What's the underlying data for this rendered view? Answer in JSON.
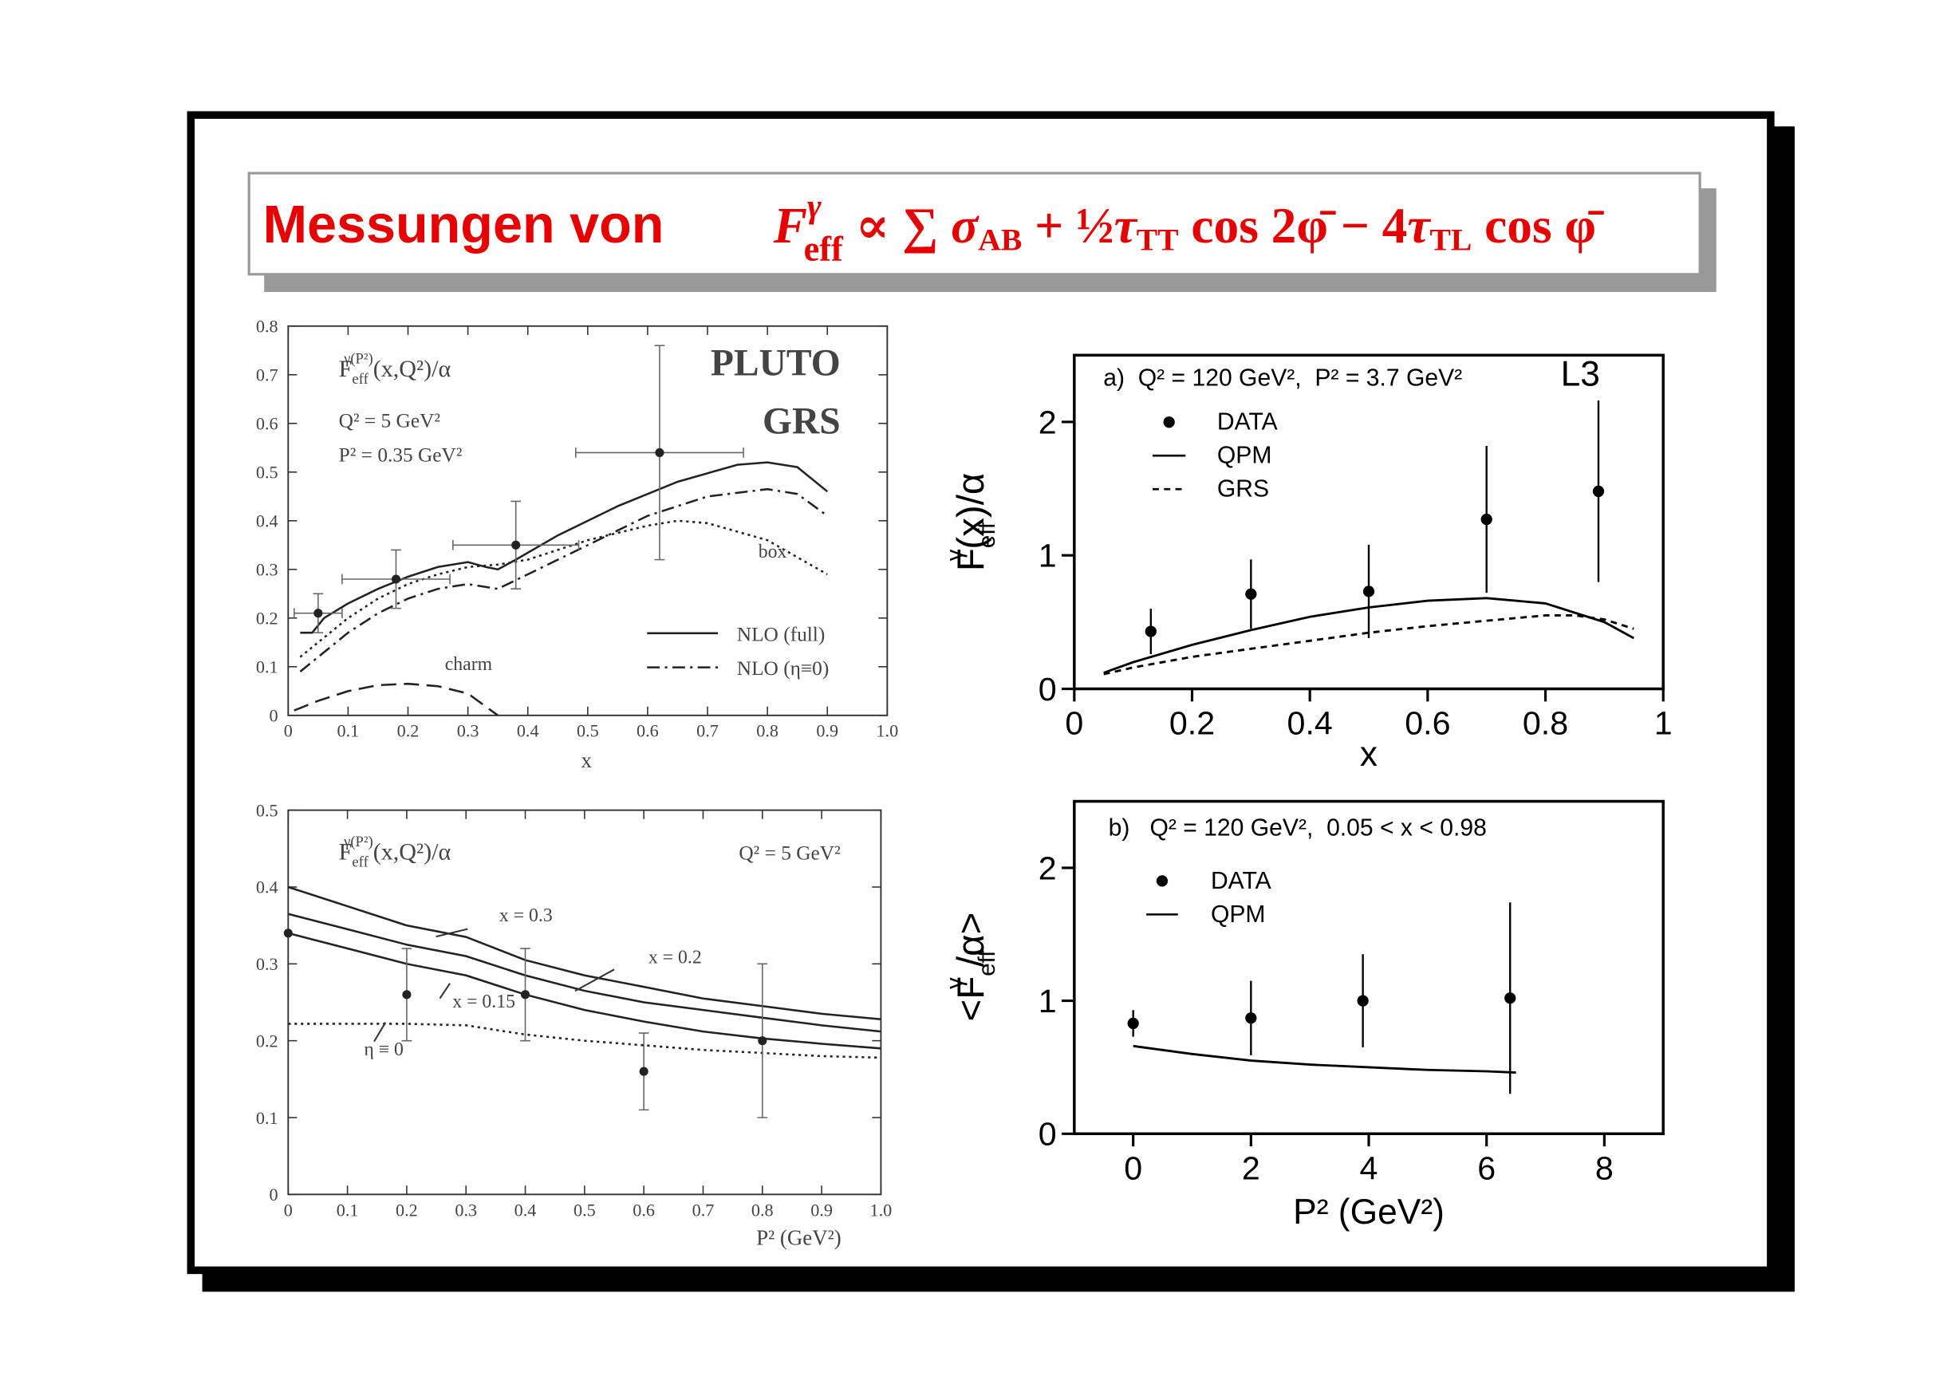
{
  "title": {
    "text": "Messungen von",
    "formula": [
      "F",
      "γ",
      "eff",
      " ∝ ∑ ",
      "σ",
      "AB",
      " + ½",
      "τ",
      "TT",
      " cos 2φ̄ − 4",
      "τ",
      "TL",
      " cos φ̄"
    ]
  },
  "chart_data": [
    {
      "type": "line",
      "annotations": [
        [
          "F",
          "eff",
          "γ(P²)",
          "(x,Q²)/α"
        ],
        "Q² = 5 GeV²",
        "P² = 0.35 GeV²",
        "PLUTO",
        "GRS"
      ],
      "xlabel": "x",
      "xlim": [
        0,
        1
      ],
      "ylim": [
        0,
        0.8
      ],
      "xticks": [
        0,
        0.1,
        0.2,
        0.3,
        0.4,
        0.5,
        0.6,
        0.7,
        0.8,
        0.9,
        {
          "value": 1,
          "label": "1.0"
        }
      ],
      "yticks": [
        0,
        0.1,
        0.2,
        0.3,
        0.4,
        0.5,
        0.6,
        0.7,
        0.8
      ],
      "legend": "lower right",
      "series": [
        {
          "type": "line",
          "name": "NLO (full)",
          "color": "#222222",
          "style": "solid",
          "legend": true,
          "x": [
            0.02,
            0.04,
            0.06,
            0.1,
            0.15,
            0.2,
            0.25,
            0.3,
            0.33,
            0.35,
            0.38,
            0.45,
            0.55,
            0.65,
            0.75,
            0.8,
            0.85,
            0.9
          ],
          "values": [
            0.17,
            0.17,
            0.2,
            0.23,
            0.26,
            0.285,
            0.305,
            0.315,
            0.305,
            0.3,
            0.32,
            0.37,
            0.43,
            0.48,
            0.515,
            0.52,
            0.51,
            0.46
          ]
        },
        {
          "type": "line",
          "name": "NLO (η≡0)",
          "color": "#222222",
          "style": "dashdot",
          "legend": true,
          "x": [
            0.02,
            0.06,
            0.1,
            0.15,
            0.2,
            0.25,
            0.3,
            0.35,
            0.4,
            0.5,
            0.6,
            0.7,
            0.8,
            0.85,
            0.9
          ],
          "values": [
            0.09,
            0.13,
            0.17,
            0.21,
            0.24,
            0.26,
            0.27,
            0.26,
            0.29,
            0.35,
            0.41,
            0.45,
            0.465,
            0.455,
            0.41
          ]
        },
        {
          "type": "line",
          "name": "box",
          "color": "#222222",
          "style": "dotted",
          "legend": false,
          "x": [
            0.02,
            0.06,
            0.1,
            0.15,
            0.2,
            0.25,
            0.3,
            0.35,
            0.4,
            0.5,
            0.6,
            0.65,
            0.7,
            0.8,
            0.9
          ],
          "values": [
            0.12,
            0.16,
            0.2,
            0.24,
            0.27,
            0.29,
            0.305,
            0.31,
            0.32,
            0.36,
            0.39,
            0.4,
            0.395,
            0.36,
            0.29
          ]
        },
        {
          "type": "line",
          "name": "charm",
          "color": "#222222",
          "style": "dashed",
          "legend": false,
          "x": [
            0.01,
            0.05,
            0.1,
            0.15,
            0.2,
            0.25,
            0.3,
            0.35
          ],
          "values": [
            0.01,
            0.03,
            0.05,
            0.062,
            0.065,
            0.06,
            0.045,
            0
          ]
        },
        {
          "type": "errorbar",
          "color": "#222222",
          "legend": false,
          "x": [
            0.05,
            0.18,
            0.38,
            0.62
          ],
          "xerrors": [
            0.04,
            0.09,
            0.105,
            0.14
          ],
          "values": [
            0.21,
            0.28,
            0.35,
            0.54
          ],
          "errors": [
            0.04,
            0.06,
            0.09,
            0.22
          ]
        }
      ]
    },
    {
      "type": "line",
      "annotations": [
        [
          "F",
          "eff",
          "γ(P²)",
          "(x,Q²)/α"
        ],
        "Q² = 5 GeV²"
      ],
      "xlabel": "P² (GeV²)",
      "xlim": [
        0,
        1
      ],
      "ylim": [
        0,
        0.5
      ],
      "xticks": [
        0,
        0.1,
        0.2,
        0.3,
        0.4,
        0.5,
        0.6,
        0.7,
        0.8,
        0.9,
        {
          "value": 1,
          "label": "1.0"
        }
      ],
      "yticks": [
        0,
        0.1,
        0.2,
        0.3,
        0.4,
        0.5
      ],
      "series": [
        {
          "type": "line",
          "name": "x = 0.3",
          "color": "#222222",
          "style": "solid",
          "legend": false,
          "x": [
            0,
            0.1,
            0.2,
            0.3,
            0.4,
            0.5,
            0.6,
            0.7,
            0.8,
            0.9,
            1
          ],
          "values": [
            0.4,
            0.375,
            0.35,
            0.335,
            0.305,
            0.285,
            0.27,
            0.255,
            0.245,
            0.235,
            0.228
          ]
        },
        {
          "type": "line",
          "name": "x = 0.2",
          "color": "#222222",
          "style": "solid",
          "legend": false,
          "x": [
            0,
            0.1,
            0.2,
            0.3,
            0.4,
            0.5,
            0.6,
            0.7,
            0.8,
            0.9,
            1
          ],
          "values": [
            0.365,
            0.345,
            0.325,
            0.31,
            0.285,
            0.265,
            0.25,
            0.24,
            0.23,
            0.22,
            0.212
          ]
        },
        {
          "type": "line",
          "name": "x = 0.15",
          "color": "#222222",
          "style": "solid",
          "legend": false,
          "x": [
            0,
            0.1,
            0.2,
            0.3,
            0.4,
            0.5,
            0.6,
            0.7,
            0.8,
            0.9,
            1
          ],
          "values": [
            0.34,
            0.32,
            0.3,
            0.285,
            0.26,
            0.24,
            0.225,
            0.212,
            0.203,
            0.196,
            0.19
          ]
        },
        {
          "type": "line",
          "name": "η ≡ 0",
          "color": "#222222",
          "style": "dotted",
          "legend": false,
          "x": [
            0,
            0.1,
            0.2,
            0.3,
            0.4,
            0.5,
            0.6,
            0.7,
            0.8,
            0.9,
            1
          ],
          "values": [
            0.222,
            0.222,
            0.222,
            0.22,
            0.208,
            0.2,
            0.194,
            0.188,
            0.184,
            0.18,
            0.178
          ]
        },
        {
          "type": "errorbar",
          "color": "#222222",
          "legend": false,
          "x": [
            0,
            0.2,
            0.4,
            0.6,
            0.8
          ],
          "values": [
            0.34,
            0.26,
            0.26,
            0.16,
            0.2
          ],
          "errors": [
            0,
            0.06,
            0.06,
            0.05,
            0.1
          ]
        }
      ]
    },
    {
      "type": "line",
      "annotations": [
        "a)  Q² = 120 GeV²,  P² = 3.7 GeV²",
        "L3"
      ],
      "xlabel": "x",
      "ylabel": [
        "F",
        "eff",
        "γ",
        "(x)/α"
      ],
      "xlim": [
        0,
        1
      ],
      "ylim": [
        0,
        2.5
      ],
      "xticks": [
        0,
        0.2,
        0.4,
        0.6,
        0.8,
        1
      ],
      "yticks": [
        0,
        1,
        2
      ],
      "legend": "upper left",
      "series": [
        {
          "type": "errorbar",
          "name": "DATA",
          "color": "#000000",
          "legend": true,
          "x": [
            0.13,
            0.3,
            0.5,
            0.7,
            0.89
          ],
          "values": [
            0.43,
            0.71,
            0.73,
            1.27,
            1.48
          ],
          "errors": [
            0.17,
            0.26,
            0.35,
            0.55,
            0.68
          ]
        },
        {
          "type": "line",
          "name": "QPM",
          "color": "#000000",
          "style": "solid",
          "legend": true,
          "x": [
            0.05,
            0.1,
            0.2,
            0.3,
            0.4,
            0.5,
            0.6,
            0.7,
            0.8,
            0.9,
            0.95
          ],
          "values": [
            0.12,
            0.2,
            0.33,
            0.44,
            0.54,
            0.61,
            0.66,
            0.68,
            0.64,
            0.5,
            0.38
          ]
        },
        {
          "type": "line",
          "name": "GRS",
          "color": "#000000",
          "style": "shortdash",
          "legend": true,
          "x": [
            0.05,
            0.1,
            0.2,
            0.3,
            0.4,
            0.5,
            0.6,
            0.7,
            0.8,
            0.85,
            0.9,
            0.95
          ],
          "values": [
            0.11,
            0.16,
            0.24,
            0.3,
            0.36,
            0.42,
            0.47,
            0.51,
            0.55,
            0.55,
            0.52,
            0.45
          ]
        }
      ]
    },
    {
      "type": "line",
      "annotations": [
        "b)   Q² = 120 GeV²,  0.05 < x < 0.98"
      ],
      "xlabel": "P² (GeV²)",
      "ylabel": [
        "<F",
        "eff",
        "γ",
        " /α>"
      ],
      "xlim": [
        -1,
        9
      ],
      "ylim": [
        0,
        2.5
      ],
      "xticks": [
        0,
        2,
        4,
        6,
        8
      ],
      "yticks": [
        0,
        1,
        2
      ],
      "legend": "upper left",
      "series": [
        {
          "type": "errorbar",
          "name": "DATA",
          "color": "#000000",
          "legend": true,
          "x": [
            0,
            2,
            3.9,
            6.4
          ],
          "values": [
            0.83,
            0.87,
            1.0,
            1.02
          ],
          "errors": [
            0.1,
            0.28,
            0.35,
            0.72
          ]
        },
        {
          "type": "line",
          "name": "QPM",
          "color": "#000000",
          "style": "solid",
          "legend": true,
          "x": [
            0,
            1,
            2,
            3,
            4,
            5,
            6,
            6.5
          ],
          "values": [
            0.66,
            0.6,
            0.55,
            0.52,
            0.5,
            0.48,
            0.47,
            0.46
          ]
        }
      ]
    }
  ]
}
